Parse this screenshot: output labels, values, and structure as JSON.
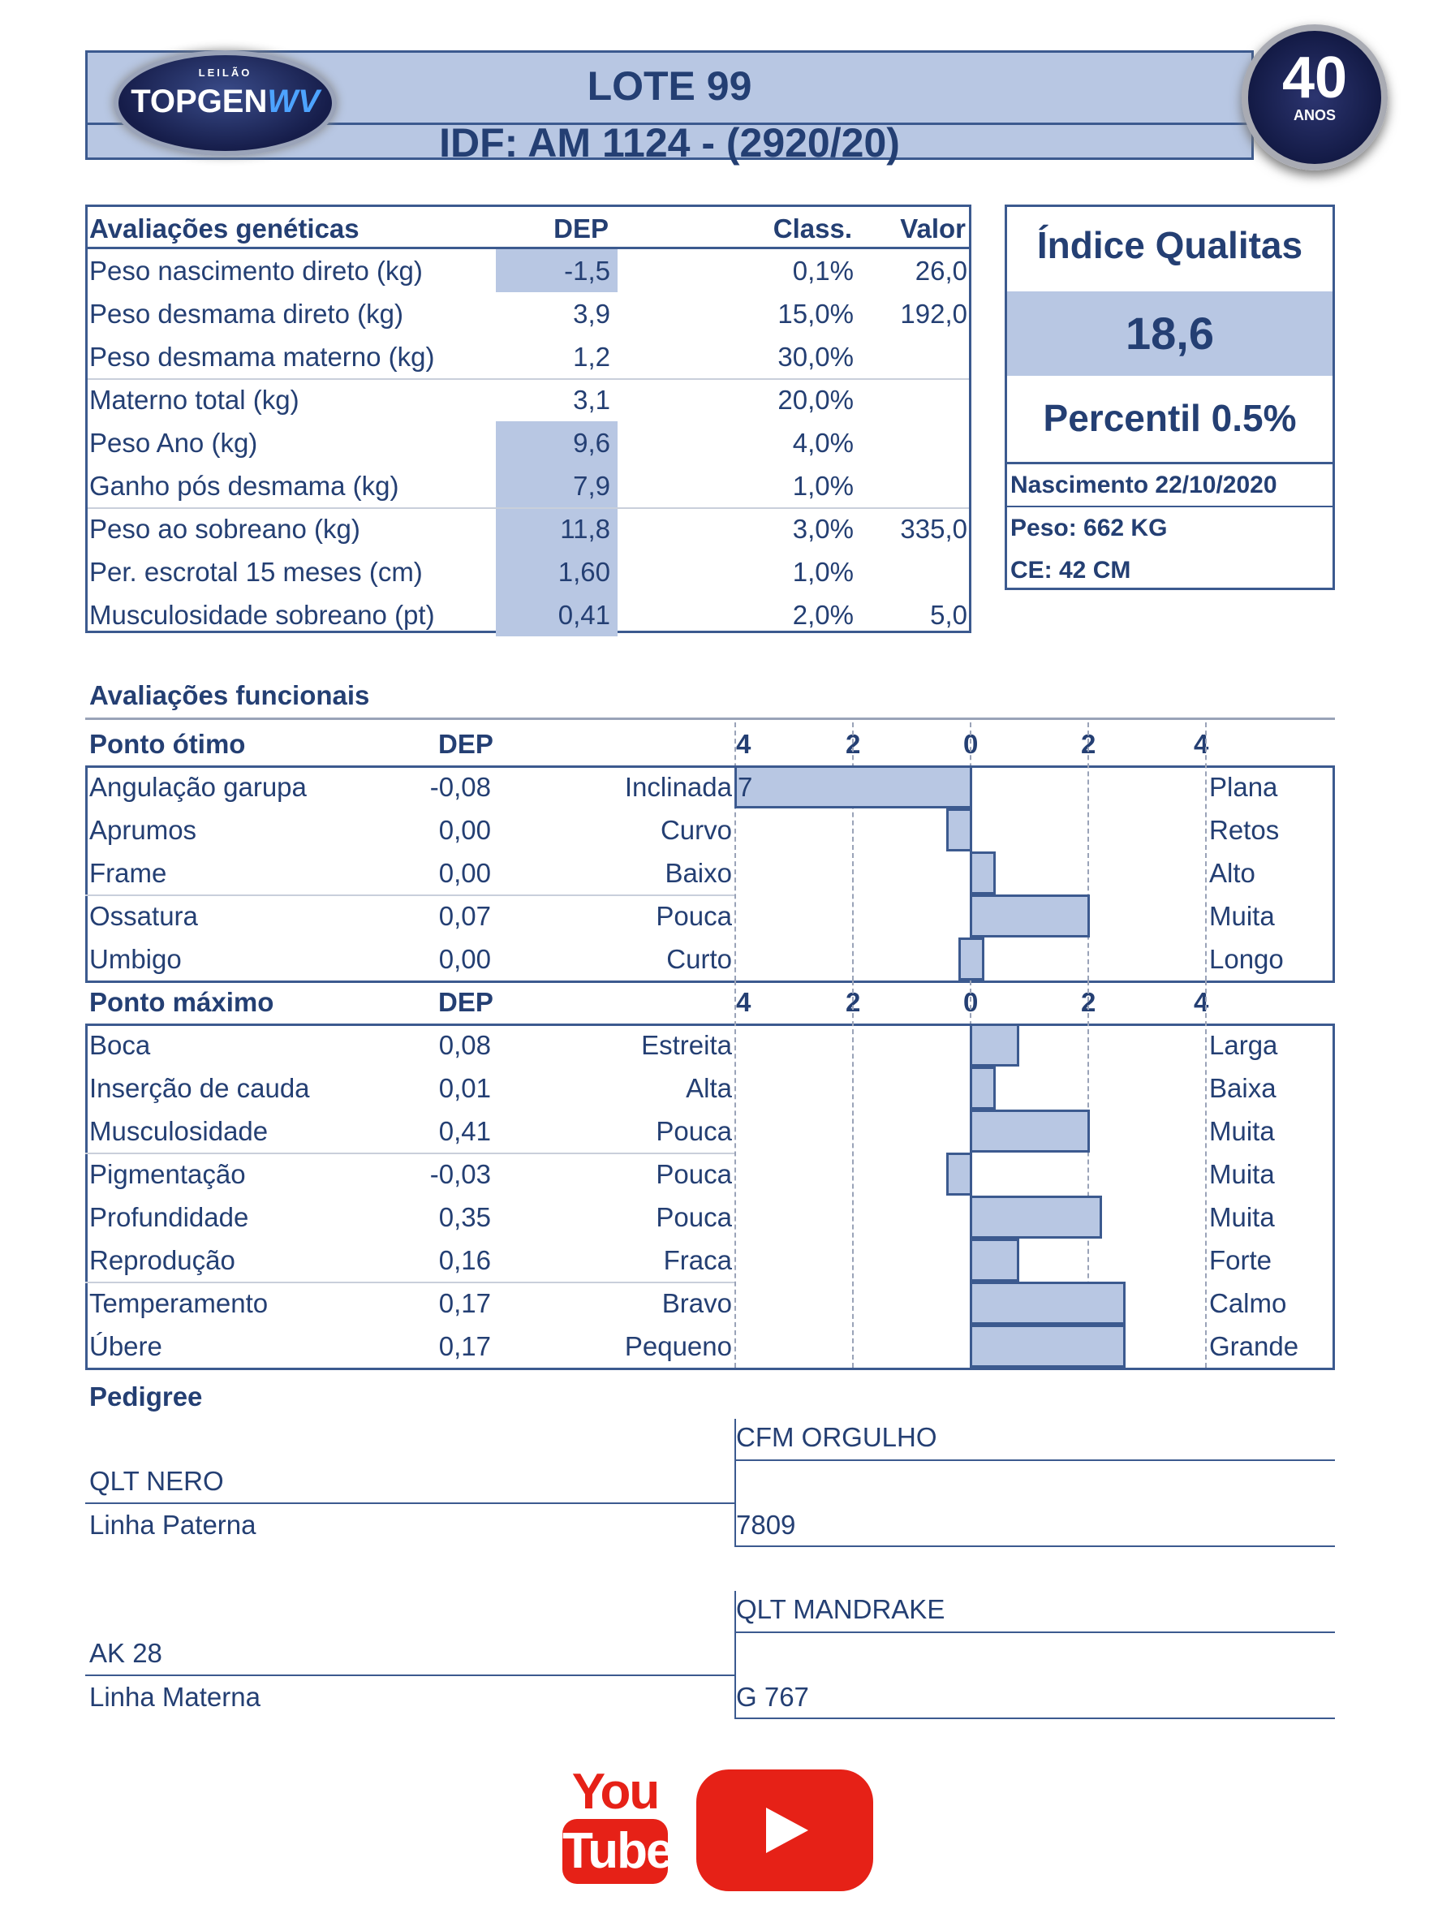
{
  "header": {
    "title": "LOTE 99",
    "subtitle": "IDF: AM 1124 - (2920/20)",
    "logo_small": "LEILÃO",
    "logo_main": "TOPGEN",
    "logo_accent": "WV",
    "seal_number": "40",
    "seal_text": "ANOS"
  },
  "genetic": {
    "headers": [
      "Avaliações genéticas",
      "DEP",
      "Class.",
      "Valor"
    ],
    "rows": [
      {
        "label": "Peso nascimento direto (kg)",
        "dep": "-1,5",
        "cls": "0,1%",
        "valor": "26,0",
        "hl": true
      },
      {
        "label": "Peso desmama direto (kg)",
        "dep": "3,9",
        "cls": "15,0%",
        "valor": "192,0",
        "hl": false
      },
      {
        "label": "Peso desmama materno (kg)",
        "dep": "1,2",
        "cls": "30,0%",
        "valor": "",
        "hl": false
      },
      {
        "label": "Materno total (kg)",
        "dep": "3,1",
        "cls": "20,0%",
        "valor": "",
        "hl": false
      },
      {
        "label": "Peso Ano (kg)",
        "dep": "9,6",
        "cls": "4,0%",
        "valor": "",
        "hl": true
      },
      {
        "label": "Ganho pós desmama (kg)",
        "dep": "7,9",
        "cls": "1,0%",
        "valor": "",
        "hl": true
      },
      {
        "label": "Peso ao sobreano (kg)",
        "dep": "11,8",
        "cls": "3,0%",
        "valor": "335,0",
        "hl": true
      },
      {
        "label": "Per. escrotal 15 meses (cm)",
        "dep": "1,60",
        "cls": "1,0%",
        "valor": "",
        "hl": true
      },
      {
        "label": "Musculosidade sobreano (pt)",
        "dep": "0,41",
        "cls": "2,0%",
        "valor": "5,0",
        "hl": true
      }
    ]
  },
  "qualitas": {
    "title": "Índice Qualitas",
    "value": "18,6",
    "percentil": "Percentil 0.5%",
    "nascimento": "Nascimento 22/10/2020",
    "peso": "Peso: 662 KG",
    "ce": "CE: 42 CM"
  },
  "functional": {
    "title": "Avaliações funcionais",
    "axis_ticks": [
      "4",
      "2",
      "0",
      "2",
      "4"
    ],
    "xlim": [
      -4,
      4
    ],
    "bar_color": "#b8c7e3",
    "groups": [
      {
        "header": "Ponto ótimo",
        "dep_header": "DEP",
        "rows": [
          {
            "label": "Angulação garupa",
            "dep": "-0,08",
            "left": "Inclinada",
            "right": "Plana",
            "bar": [
              -4,
              0
            ],
            "overflow": "7"
          },
          {
            "label": "Aprumos",
            "dep": "0,00",
            "left": "Curvo",
            "right": "Retos",
            "bar": [
              -0.4,
              0
            ]
          },
          {
            "label": "Frame",
            "dep": "0,00",
            "left": "Baixo",
            "right": "Alto",
            "bar": [
              0,
              0.4
            ]
          },
          {
            "label": "Ossatura",
            "dep": "0,07",
            "left": "Pouca",
            "right": "Muita",
            "bar": [
              0,
              2
            ]
          },
          {
            "label": "Umbigo",
            "dep": "0,00",
            "left": "Curto",
            "right": "Longo",
            "bar": [
              -0.2,
              0.2
            ]
          }
        ]
      },
      {
        "header": "Ponto máximo",
        "dep_header": "DEP",
        "rows": [
          {
            "label": "Boca",
            "dep": "0,08",
            "left": "Estreita",
            "right": "Larga",
            "bar": [
              0,
              0.8
            ]
          },
          {
            "label": "Inserção de cauda",
            "dep": "0,01",
            "left": "Alta",
            "right": "Baixa",
            "bar": [
              0,
              0.4
            ]
          },
          {
            "label": "Musculosidade",
            "dep": "0,41",
            "left": "Pouca",
            "right": "Muita",
            "bar": [
              0,
              2
            ]
          },
          {
            "label": "Pigmentação",
            "dep": "-0,03",
            "left": "Pouca",
            "right": "Muita",
            "bar": [
              -0.4,
              0
            ]
          },
          {
            "label": "Profundidade",
            "dep": "0,35",
            "left": "Pouca",
            "right": "Muita",
            "bar": [
              0,
              2.2
            ]
          },
          {
            "label": "Reprodução",
            "dep": "0,16",
            "left": "Fraca",
            "right": "Forte",
            "bar": [
              0,
              0.8
            ]
          },
          {
            "label": "Temperamento",
            "dep": "0,17",
            "left": "Bravo",
            "right": "Calmo",
            "bar": [
              0,
              2.6
            ]
          },
          {
            "label": "Úbere",
            "dep": "0,17",
            "left": "Pequeno",
            "right": "Grande",
            "bar": [
              0,
              2.6
            ]
          }
        ]
      }
    ]
  },
  "pedigree": {
    "title": "Pedigree",
    "sire": "QLT NERO",
    "sire_line": "Linha Paterna",
    "sire_sire": "CFM ORGULHO",
    "sire_dam": "7809",
    "dam": "AK 28",
    "dam_line": "Linha Materna",
    "dam_sire": "QLT MANDRAKE",
    "dam_dam": "G 767"
  },
  "youtube": {
    "you": "You",
    "tube": "Tube",
    "color": "#e62117"
  }
}
